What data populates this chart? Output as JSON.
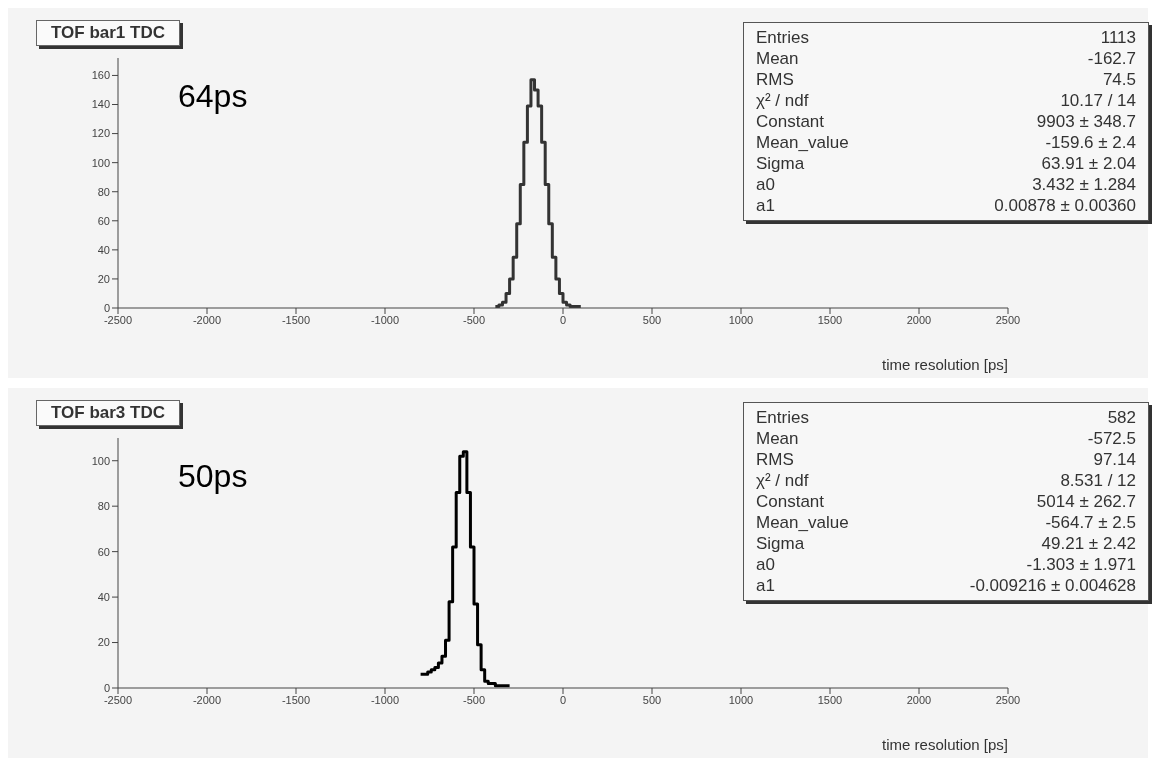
{
  "chart_data": [
    {
      "type": "histogram",
      "title": "TOF bar1 TDC",
      "xlabel": "time resolution [ps]",
      "color": "#333333",
      "bins": [
        -380,
        -360,
        -340,
        -320,
        -300,
        -280,
        -260,
        -240,
        -220,
        -200,
        -180,
        -160,
        -140,
        -120,
        -100,
        -80,
        -60,
        -40,
        -20,
        0,
        20,
        40,
        60,
        80,
        100
      ],
      "values": [
        1,
        2,
        4,
        10,
        20,
        35,
        58,
        85,
        114,
        139,
        157,
        150,
        139,
        114,
        85,
        58,
        35,
        20,
        10,
        4,
        2,
        1,
        1,
        1
      ],
      "xlim": [
        -2500,
        2500
      ],
      "xticks": [
        -2500,
        -2000,
        -1500,
        -1000,
        -500,
        0,
        500,
        1000,
        1500,
        2000,
        2500
      ],
      "ylim": [
        0,
        172
      ],
      "yticks": [
        0,
        20,
        40,
        60,
        80,
        100,
        120,
        140,
        160
      ],
      "annotations": [
        "64ps",
        "Entries",
        "1113",
        "Mean",
        "-162.7",
        "RMS",
        "74.5",
        "χ² / ndf",
        "10.17 / 14",
        "Constant",
        "9903 ± 348.7",
        "Mean_value",
        "-159.6 ± 2.4",
        "Sigma",
        "63.91 ± 2.04",
        "a0",
        "3.432 ± 1.284",
        "a1",
        "0.00878 ± 0.00360"
      ]
    },
    {
      "type": "histogram",
      "title": "TOF bar3 TDC",
      "xlabel": "time resolution [ps]",
      "color": "#000000",
      "bins": [
        -800,
        -780,
        -760,
        -740,
        -720,
        -700,
        -680,
        -660,
        -640,
        -620,
        -600,
        -580,
        -560,
        -540,
        -520,
        -500,
        -480,
        -460,
        -440,
        -420,
        -400,
        -380,
        -360,
        -340,
        -320,
        -300
      ],
      "values": [
        6,
        6,
        7,
        8,
        9,
        11,
        14,
        21,
        38,
        62,
        86,
        102,
        104,
        86,
        62,
        37,
        19,
        8,
        3,
        2,
        2,
        1,
        1,
        1,
        1
      ],
      "xlim": [
        -2500,
        2500
      ],
      "xticks": [
        -2500,
        -2000,
        -1500,
        -1000,
        -500,
        0,
        500,
        1000,
        1500,
        2000,
        2500
      ],
      "ylim": [
        0,
        110
      ],
      "yticks": [
        0,
        20,
        40,
        60,
        80,
        100
      ],
      "annotations": [
        "50ps",
        "Entries",
        "582",
        "Mean",
        "-572.5",
        "RMS",
        "97.14",
        "χ² / ndf",
        "8.531 / 12",
        "Constant",
        "5014 ± 262.7",
        "Mean_value",
        "-564.7 ± 2.5",
        "Sigma",
        "49.21 ± 2.42",
        "a0",
        "-1.303 ± 1.971",
        "a1",
        "-0.009216 ± 0.004628"
      ]
    }
  ]
}
